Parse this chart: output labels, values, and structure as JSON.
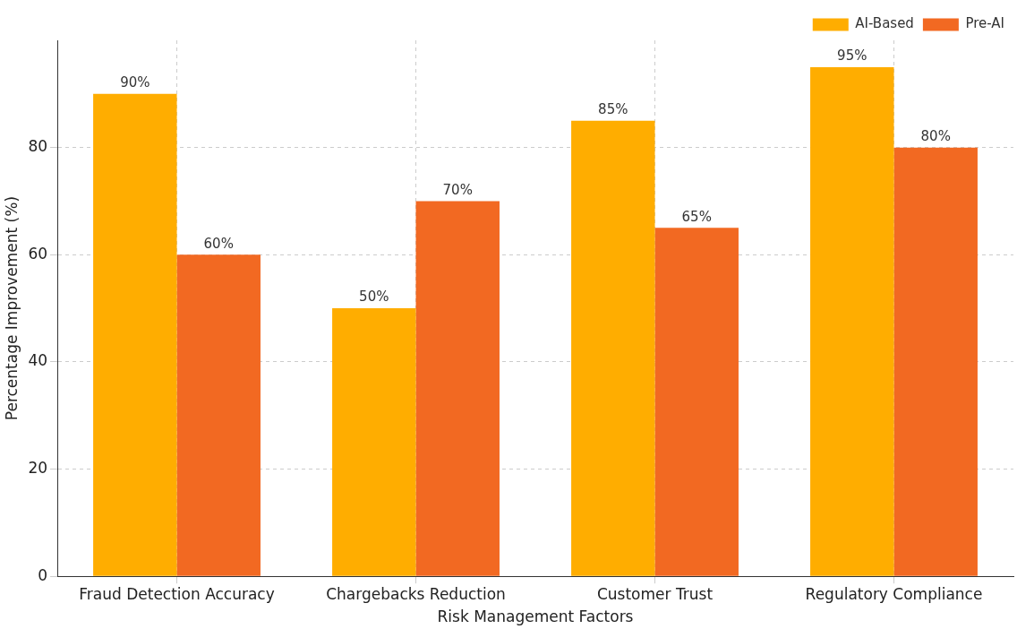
{
  "chart_data": {
    "type": "bar",
    "xlabel": "Risk Management Factors",
    "ylabel": "Percentage Improvement (%)",
    "categories": [
      "Fraud Detection Accuracy",
      "Chargebacks Reduction",
      "Customer Trust",
      "Regulatory Compliance"
    ],
    "series": [
      {
        "name": "AI-Based",
        "color": "#ffad00",
        "values": [
          90,
          50,
          85,
          95
        ],
        "value_labels": [
          "90%",
          "50%",
          "85%",
          "95%"
        ]
      },
      {
        "name": "Pre-AI",
        "color": "#f26922",
        "values": [
          60,
          70,
          65,
          80
        ],
        "value_labels": [
          "60%",
          "70%",
          "65%",
          "80%"
        ]
      }
    ],
    "ylim": [
      0,
      100
    ],
    "yticks": [
      0,
      20,
      40,
      60,
      80
    ],
    "grid": true,
    "legend": "top right"
  }
}
